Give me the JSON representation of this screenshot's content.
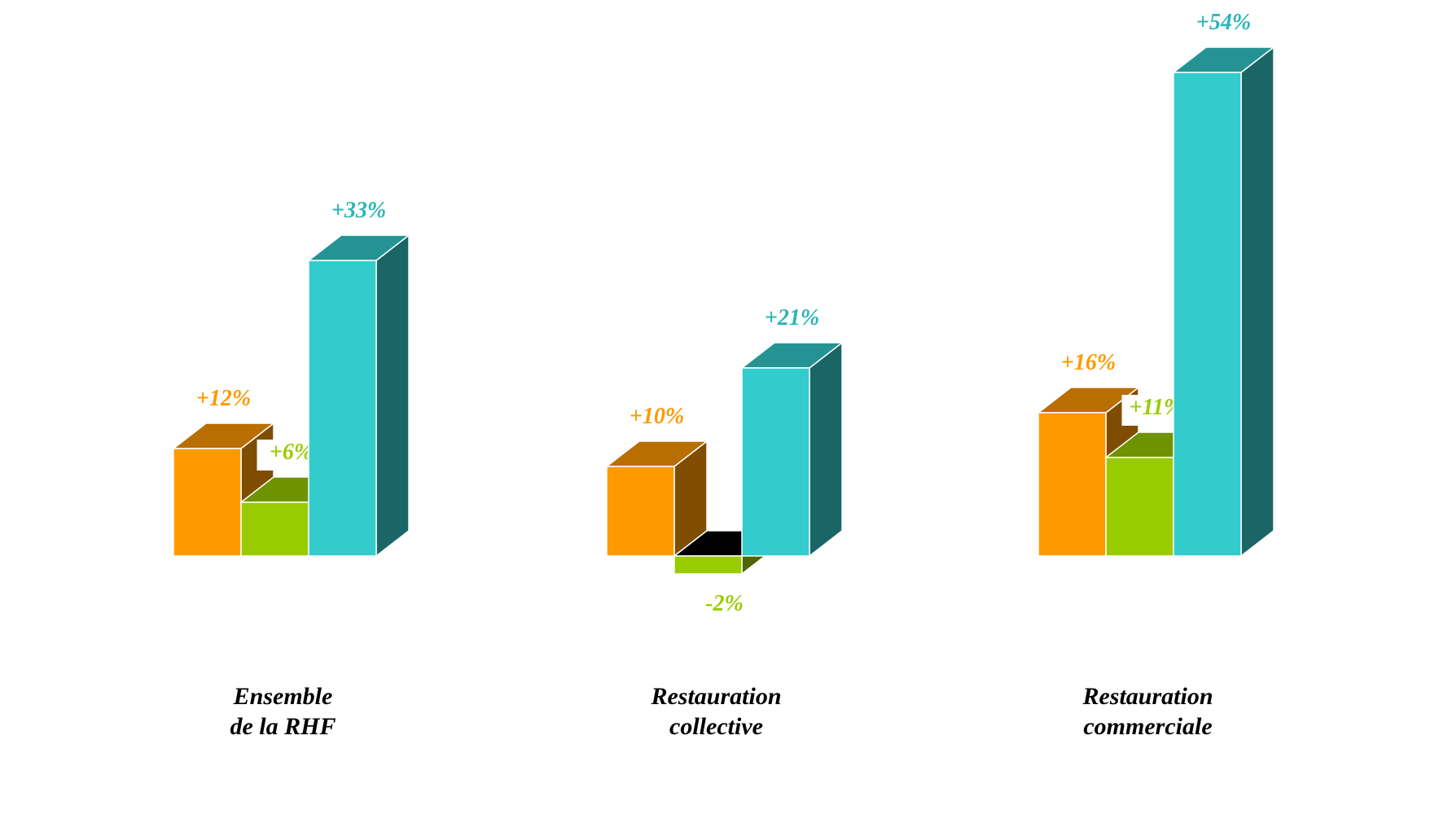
{
  "chart_data": {
    "type": "bar3d",
    "categories": [
      [
        "Ensemble",
        "de la RHF"
      ],
      [
        "Restauration",
        "collective"
      ],
      [
        "Restauration",
        "commerciale"
      ]
    ],
    "series": [
      {
        "color": "#ff9900",
        "values": [
          12,
          10,
          16
        ],
        "value_labels": [
          "+12%",
          "+10%",
          "+16%"
        ]
      },
      {
        "color": "#99cc00",
        "values": [
          6,
          -2,
          11
        ],
        "value_labels": [
          "+6%",
          "-2%",
          "+11%"
        ]
      },
      {
        "color": "#33cccc",
        "values": [
          33,
          21,
          54
        ],
        "value_labels": [
          "+33%",
          "+21%",
          "+54%"
        ]
      }
    ]
  }
}
